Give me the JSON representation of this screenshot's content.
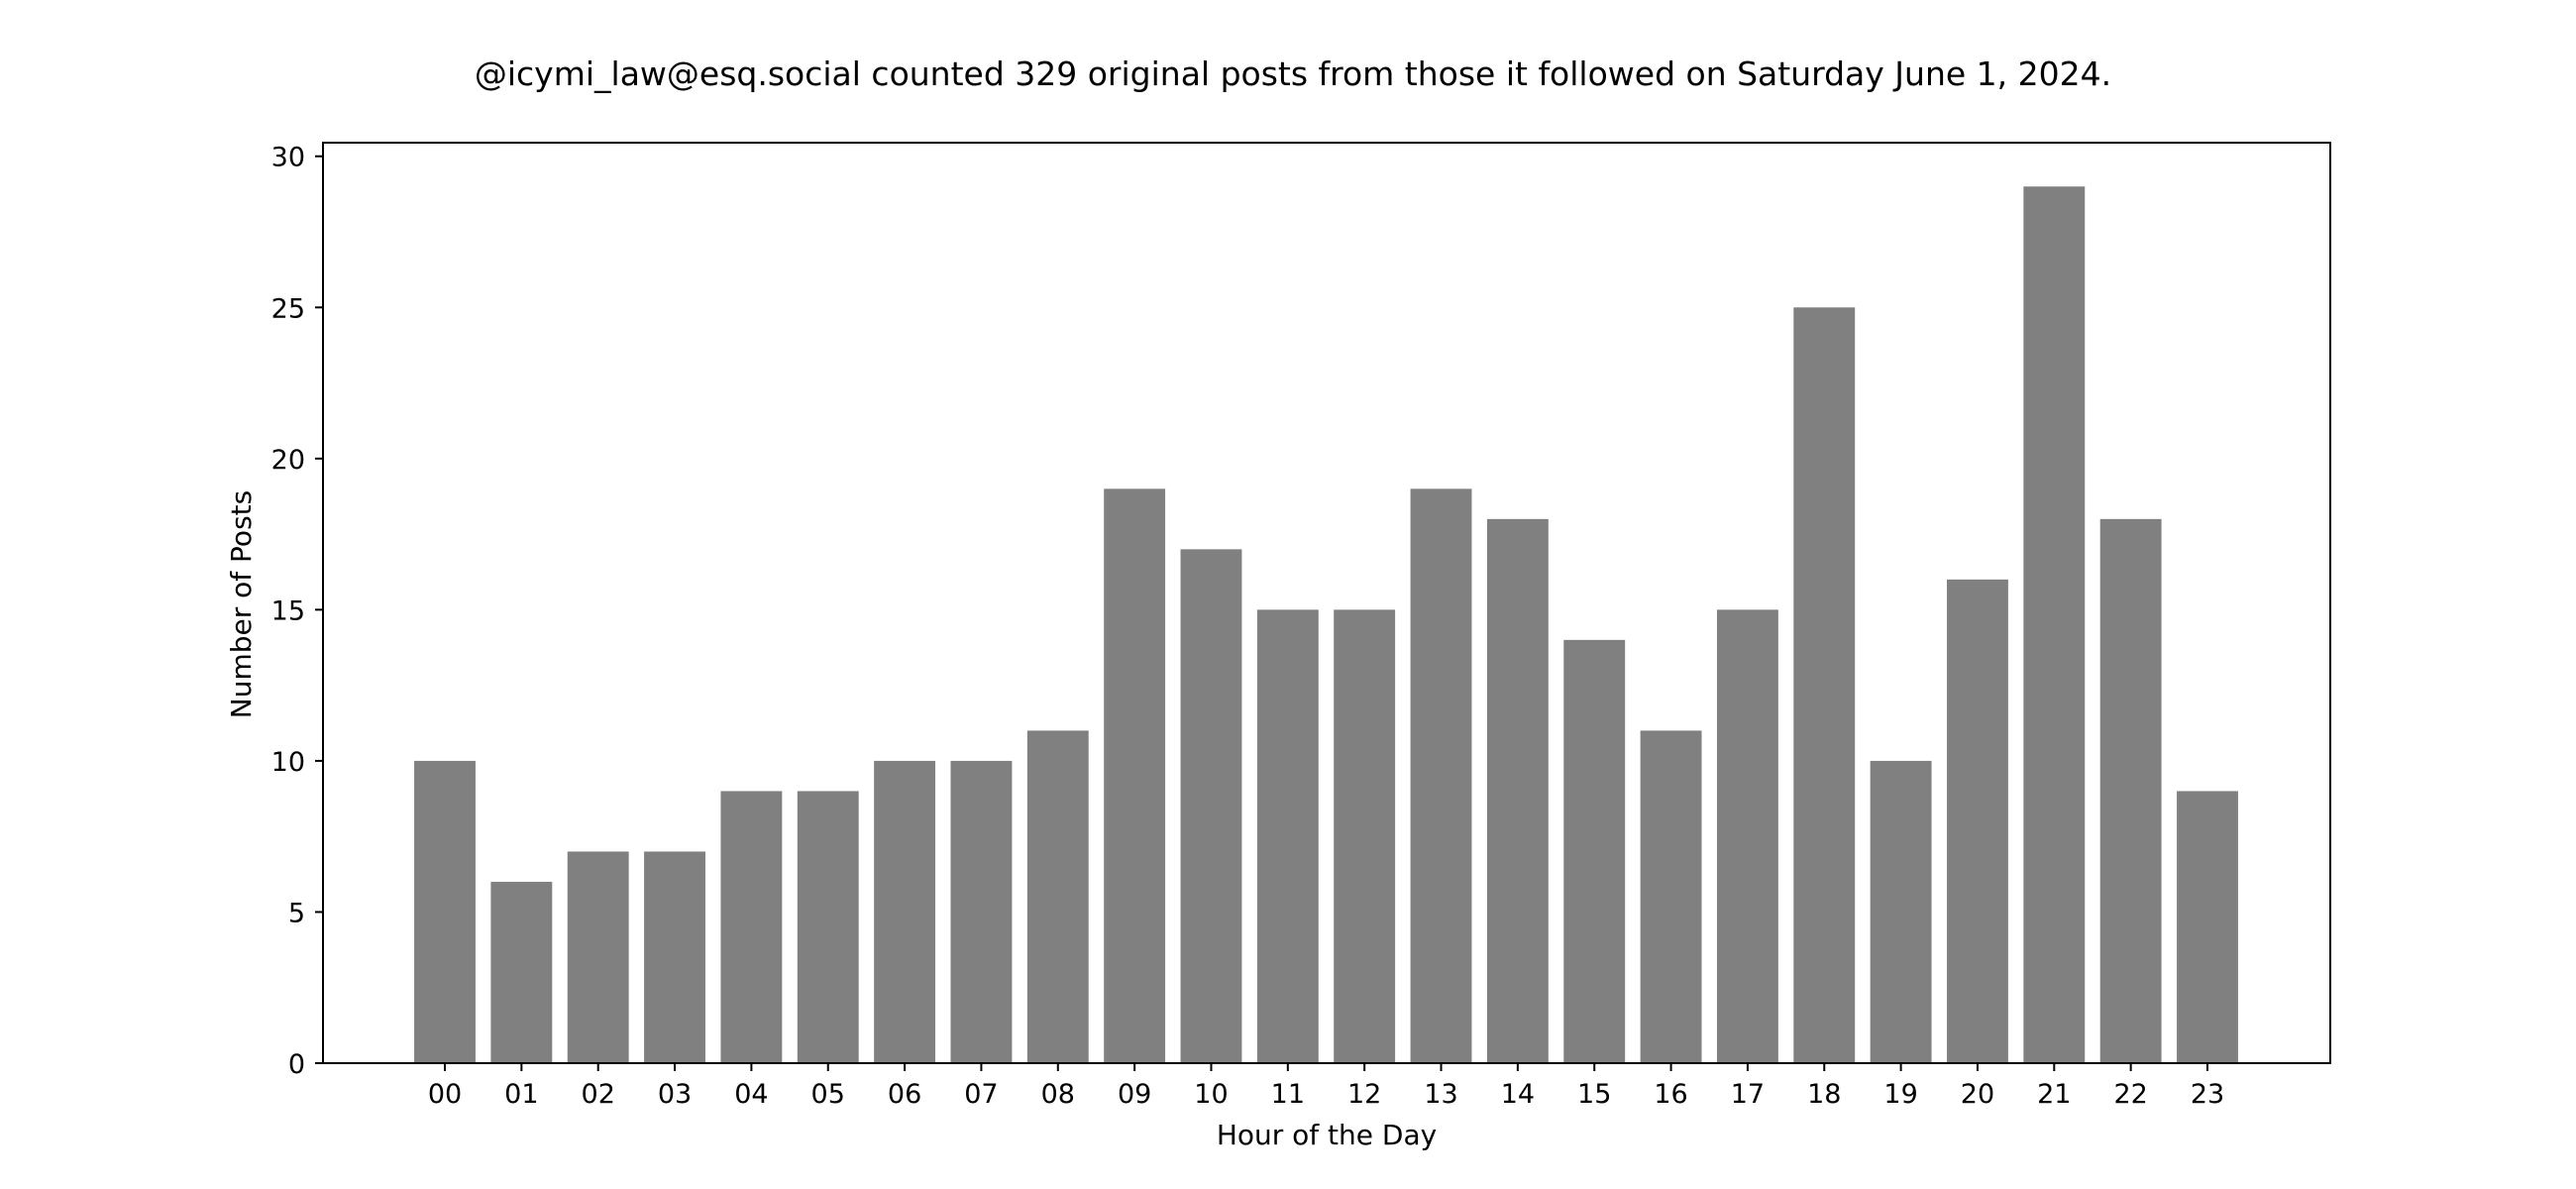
{
  "chart_data": {
    "type": "bar",
    "title": "@icymi_law@esq.social counted 329 original posts from those it followed on Saturday June 1, 2024.",
    "xlabel": "Hour of the Day",
    "ylabel": "Number of Posts",
    "categories": [
      "00",
      "01",
      "02",
      "03",
      "04",
      "05",
      "06",
      "07",
      "08",
      "09",
      "10",
      "11",
      "12",
      "13",
      "14",
      "15",
      "16",
      "17",
      "18",
      "19",
      "20",
      "21",
      "22",
      "23"
    ],
    "values": [
      10,
      6,
      7,
      7,
      9,
      9,
      10,
      10,
      11,
      19,
      17,
      15,
      15,
      19,
      18,
      14,
      11,
      15,
      25,
      10,
      16,
      29,
      18,
      9
    ],
    "ylim": [
      0,
      30.45
    ],
    "yticks": [
      0,
      5,
      10,
      15,
      20,
      25,
      30
    ],
    "grid": false,
    "bar_color": "#808080"
  }
}
